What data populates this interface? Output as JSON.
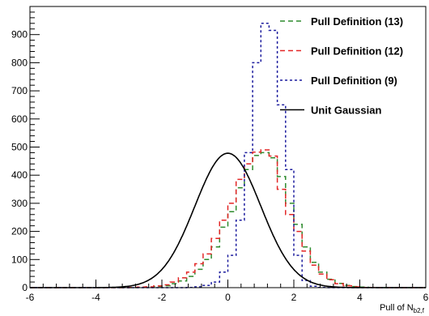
{
  "chart_data": {
    "type": "line",
    "title": "",
    "xlabel": "Pull of N",
    "xlabel_subscript": "b2,f",
    "ylabel": "",
    "xlim": [
      -6,
      6
    ],
    "ylim": [
      0,
      1000
    ],
    "x_ticks": [
      "-6",
      "-4",
      "-2",
      "0",
      "2",
      "4",
      "6"
    ],
    "y_ticks": [
      "0",
      "100",
      "200",
      "300",
      "400",
      "500",
      "600",
      "700",
      "800",
      "900"
    ],
    "grid": false,
    "legend_position": "top-right",
    "bin_width": 0.25,
    "bin_start": -6,
    "series": [
      {
        "name": "Pull Definition (13)",
        "kind": "histogram",
        "color": "#2e8b2e",
        "dash": "6,4",
        "values": [
          0,
          0,
          0,
          0,
          0,
          0,
          0,
          0,
          0,
          0,
          0,
          0,
          0,
          1,
          2,
          4,
          7,
          14,
          24,
          40,
          65,
          100,
          145,
          215,
          270,
          355,
          420,
          470,
          480,
          462,
          395,
          300,
          225,
          145,
          90,
          55,
          30,
          15,
          8,
          4,
          2,
          1,
          0,
          0,
          0,
          0,
          0,
          0
        ]
      },
      {
        "name": "Pull Definition (12)",
        "kind": "histogram",
        "color": "#e32626",
        "dash": "6,4",
        "values": [
          0,
          0,
          0,
          0,
          0,
          0,
          0,
          0,
          0,
          0,
          0,
          0,
          1,
          2,
          3,
          6,
          10,
          20,
          35,
          55,
          85,
          120,
          175,
          240,
          300,
          385,
          440,
          482,
          490,
          468,
          350,
          260,
          200,
          130,
          80,
          48,
          28,
          14,
          7,
          3,
          1,
          1,
          0,
          0,
          0,
          0,
          0,
          0
        ]
      },
      {
        "name": "Pull Definition (9)",
        "kind": "histogram",
        "color": "#1c1c9e",
        "dash": "3,3",
        "values": [
          0,
          0,
          0,
          0,
          0,
          0,
          0,
          0,
          0,
          0,
          0,
          0,
          0,
          0,
          0,
          0,
          0,
          0,
          0,
          1,
          3,
          8,
          20,
          55,
          115,
          240,
          480,
          800,
          940,
          915,
          650,
          420,
          115,
          25,
          5,
          1,
          0,
          0,
          0,
          0,
          0,
          0,
          0,
          0,
          0,
          0,
          0,
          0
        ]
      },
      {
        "name": "Unit Gaussian",
        "kind": "curve",
        "color": "#000000",
        "dash": "",
        "amplitude": 478,
        "mean": 0,
        "sigma": 1
      }
    ]
  }
}
